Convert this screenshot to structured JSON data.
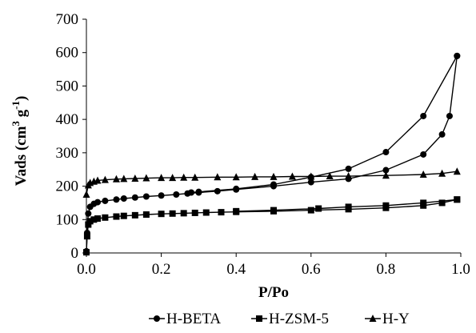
{
  "chart_data": {
    "type": "scatter",
    "title": "",
    "xlabel": "P/Po",
    "ylabel": "Vads (cm3 g-1)",
    "ylabel_parts": {
      "base": "Vads (cm",
      "sup1": "3",
      "mid": " g",
      "sup2": "-1",
      "end": ")"
    },
    "xlim": [
      0,
      1
    ],
    "ylim": [
      0,
      700
    ],
    "xticks": [
      "0.0",
      "0.2",
      "0.4",
      "0.6",
      "0.8",
      "1.0"
    ],
    "yticks": [
      "0",
      "100",
      "200",
      "300",
      "400",
      "500",
      "600",
      "700"
    ],
    "grid": false,
    "legend_position": "bottom",
    "series": [
      {
        "name": "H-BETA",
        "marker": "circle",
        "adsorption": [
          [
            0.0,
            5
          ],
          [
            0.002,
            60
          ],
          [
            0.005,
            118
          ],
          [
            0.01,
            138
          ],
          [
            0.02,
            147
          ],
          [
            0.03,
            152
          ],
          [
            0.05,
            156
          ],
          [
            0.08,
            160
          ],
          [
            0.1,
            163
          ],
          [
            0.13,
            166
          ],
          [
            0.16,
            169
          ],
          [
            0.2,
            172
          ],
          [
            0.24,
            175
          ],
          [
            0.27,
            178
          ],
          [
            0.3,
            181
          ],
          [
            0.35,
            185
          ],
          [
            0.4,
            190
          ],
          [
            0.5,
            200
          ],
          [
            0.6,
            212
          ],
          [
            0.7,
            222
          ],
          [
            0.8,
            248
          ],
          [
            0.9,
            295
          ],
          [
            0.95,
            355
          ],
          [
            0.97,
            410
          ],
          [
            0.99,
            590
          ]
        ],
        "desorption": [
          [
            0.99,
            590
          ],
          [
            0.9,
            410
          ],
          [
            0.8,
            302
          ],
          [
            0.7,
            252
          ],
          [
            0.6,
            227
          ],
          [
            0.5,
            205
          ],
          [
            0.4,
            192
          ],
          [
            0.3,
            183
          ],
          [
            0.28,
            181
          ]
        ]
      },
      {
        "name": "H-ZSM-5",
        "marker": "square",
        "adsorption": [
          [
            0.0,
            2
          ],
          [
            0.002,
            50
          ],
          [
            0.005,
            85
          ],
          [
            0.01,
            95
          ],
          [
            0.02,
            100
          ],
          [
            0.03,
            103
          ],
          [
            0.05,
            106
          ],
          [
            0.08,
            109
          ],
          [
            0.1,
            111
          ],
          [
            0.13,
            113
          ],
          [
            0.16,
            115
          ],
          [
            0.2,
            117
          ],
          [
            0.23,
            118
          ],
          [
            0.26,
            119
          ],
          [
            0.29,
            120
          ],
          [
            0.32,
            121
          ],
          [
            0.36,
            122
          ],
          [
            0.4,
            123
          ],
          [
            0.5,
            125
          ],
          [
            0.6,
            128
          ],
          [
            0.7,
            131
          ],
          [
            0.8,
            135
          ],
          [
            0.9,
            142
          ],
          [
            0.95,
            150
          ],
          [
            0.99,
            160
          ]
        ],
        "desorption": [
          [
            0.99,
            160
          ],
          [
            0.9,
            150
          ],
          [
            0.8,
            142
          ],
          [
            0.7,
            138
          ],
          [
            0.62,
            133
          ],
          [
            0.5,
            128
          ],
          [
            0.4,
            125
          ]
        ]
      },
      {
        "name": "H-Y",
        "marker": "triangle",
        "adsorption": [
          [
            0.0,
            175
          ],
          [
            0.005,
            203
          ],
          [
            0.01,
            210
          ],
          [
            0.02,
            214
          ],
          [
            0.03,
            217
          ],
          [
            0.05,
            219
          ],
          [
            0.08,
            221
          ],
          [
            0.1,
            222
          ],
          [
            0.13,
            223
          ],
          [
            0.16,
            224
          ],
          [
            0.2,
            225
          ],
          [
            0.23,
            225
          ],
          [
            0.26,
            226
          ],
          [
            0.29,
            226
          ],
          [
            0.35,
            227
          ],
          [
            0.4,
            227
          ],
          [
            0.45,
            228
          ],
          [
            0.5,
            228
          ],
          [
            0.55,
            229
          ],
          [
            0.6,
            229
          ],
          [
            0.65,
            230
          ],
          [
            0.7,
            230
          ],
          [
            0.8,
            232
          ],
          [
            0.9,
            235
          ],
          [
            0.95,
            238
          ],
          [
            0.99,
            244
          ]
        ],
        "desorption": []
      }
    ]
  }
}
